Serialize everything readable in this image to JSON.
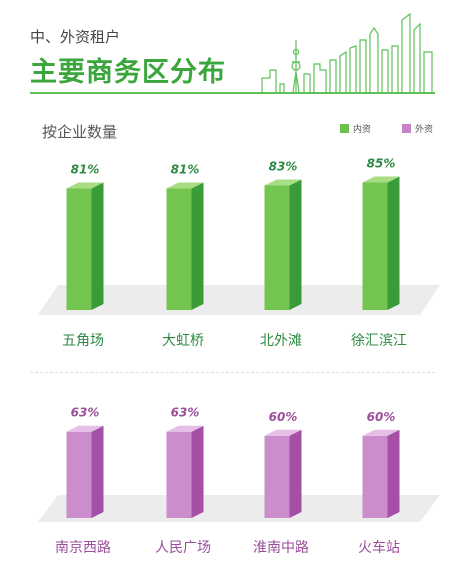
{
  "header": {
    "subtitle": "中、外资租户",
    "title": "主要商务区分布",
    "metric": "按企业数量"
  },
  "legend": [
    {
      "label": "内资",
      "color": "#6bc04b"
    },
    {
      "label": "外资",
      "color": "#c782c8"
    }
  ],
  "chart_data": [
    {
      "type": "bar",
      "series": [
        {
          "name": "内资",
          "values": [
            81,
            81,
            83,
            85
          ]
        }
      ],
      "categories": [
        "五角场",
        "大虹桥",
        "北外滩",
        "徐汇滨江"
      ],
      "value_labels": [
        "81%",
        "81%",
        "83%",
        "85%"
      ],
      "colors": {
        "front": "#73c54f",
        "side": "#3a9c38",
        "top": "#a8dd86",
        "label": "#2f8a44"
      }
    },
    {
      "type": "bar",
      "series": [
        {
          "name": "外资",
          "values": [
            63,
            63,
            60,
            60
          ]
        }
      ],
      "categories": [
        "南京西路",
        "人民广场",
        "淮南中路",
        "火车站"
      ],
      "value_labels": [
        "63%",
        "63%",
        "60%",
        "60%"
      ],
      "colors": {
        "front": "#cc8dcd",
        "side": "#a54fa7",
        "top": "#e6bfe6",
        "label": "#9b4e9c"
      }
    }
  ]
}
